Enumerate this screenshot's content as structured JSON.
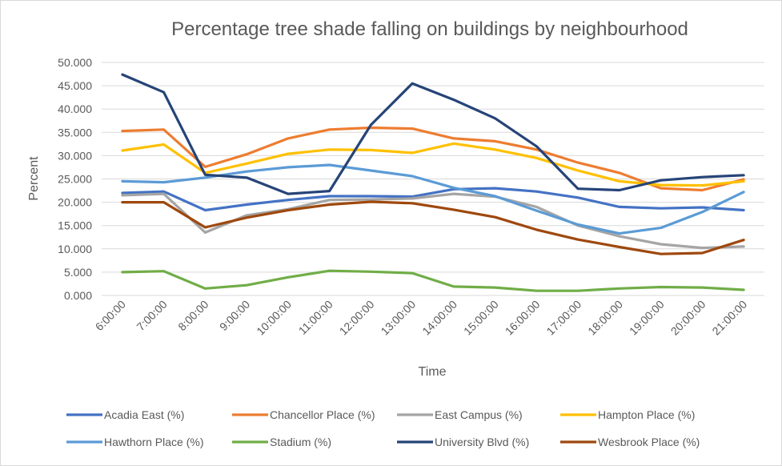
{
  "chart_data": {
    "type": "line",
    "title": "Percentage tree shade falling on buildings by neighbourhood",
    "xlabel": "Time",
    "ylabel": "Percent",
    "ylim": [
      0,
      50
    ],
    "y_ticks": [
      "0.000",
      "5.000",
      "10.000",
      "15.000",
      "20.000",
      "25.000",
      "30.000",
      "35.000",
      "40.000",
      "45.000",
      "50.000"
    ],
    "grid": "horizontal",
    "legend_position": "bottom",
    "categories": [
      "6:00:00",
      "7:00:00",
      "8:00:00",
      "9:00:00",
      "10:00:00",
      "11:00:00",
      "12:00:00",
      "13:00:00",
      "14:00:00",
      "15:00:00",
      "16:00:00",
      "17:00:00",
      "18:00:00",
      "19:00:00",
      "20:00:00",
      "21:00:00"
    ],
    "series": [
      {
        "name": "Acadia East (%)",
        "color": "#4472C4",
        "values": [
          22.0,
          22.3,
          18.3,
          19.5,
          20.5,
          21.3,
          21.3,
          21.2,
          22.8,
          23.0,
          22.3,
          21.0,
          19.0,
          18.7,
          18.9,
          18.3
        ]
      },
      {
        "name": "Chancellor Place (%)",
        "color": "#ED7D31",
        "values": [
          35.3,
          35.6,
          27.6,
          30.3,
          33.7,
          35.6,
          36.0,
          35.8,
          33.7,
          33.1,
          31.3,
          28.5,
          26.3,
          23.0,
          22.6,
          24.9
        ]
      },
      {
        "name": "East Campus (%)",
        "color": "#A5A5A5",
        "values": [
          21.5,
          21.8,
          13.5,
          17.2,
          18.5,
          20.5,
          20.6,
          20.8,
          21.8,
          21.2,
          19.0,
          15.0,
          12.7,
          11.0,
          10.2,
          10.5
        ]
      },
      {
        "name": "Hampton Place (%)",
        "color": "#FFC000",
        "values": [
          31.1,
          32.4,
          26.3,
          28.3,
          30.4,
          31.3,
          31.2,
          30.6,
          32.6,
          31.3,
          29.5,
          26.8,
          24.5,
          23.7,
          23.6,
          24.5
        ]
      },
      {
        "name": "Hawthorn Place (%)",
        "color": "#5B9BD5",
        "values": [
          24.5,
          24.3,
          25.3,
          26.6,
          27.5,
          28.0,
          26.8,
          25.6,
          23.1,
          21.3,
          18.2,
          15.2,
          13.3,
          14.5,
          17.9,
          22.2
        ]
      },
      {
        "name": "Stadium (%)",
        "color": "#70AD47",
        "values": [
          5.0,
          5.2,
          1.5,
          2.2,
          3.9,
          5.3,
          5.1,
          4.8,
          1.9,
          1.7,
          1.0,
          1.0,
          1.5,
          1.8,
          1.7,
          1.2
        ]
      },
      {
        "name": "University Blvd (%)",
        "color": "#264478",
        "values": [
          47.4,
          43.6,
          25.9,
          25.3,
          21.8,
          22.4,
          36.6,
          45.5,
          42.0,
          38.0,
          32.0,
          22.9,
          22.6,
          24.7,
          25.4,
          25.8
        ]
      },
      {
        "name": "Wesbrook Place (%)",
        "color": "#9E480E",
        "values": [
          20.0,
          20.0,
          14.6,
          16.7,
          18.3,
          19.5,
          20.1,
          19.8,
          18.4,
          16.8,
          14.1,
          12.0,
          10.4,
          8.9,
          9.1,
          11.9
        ]
      }
    ]
  }
}
